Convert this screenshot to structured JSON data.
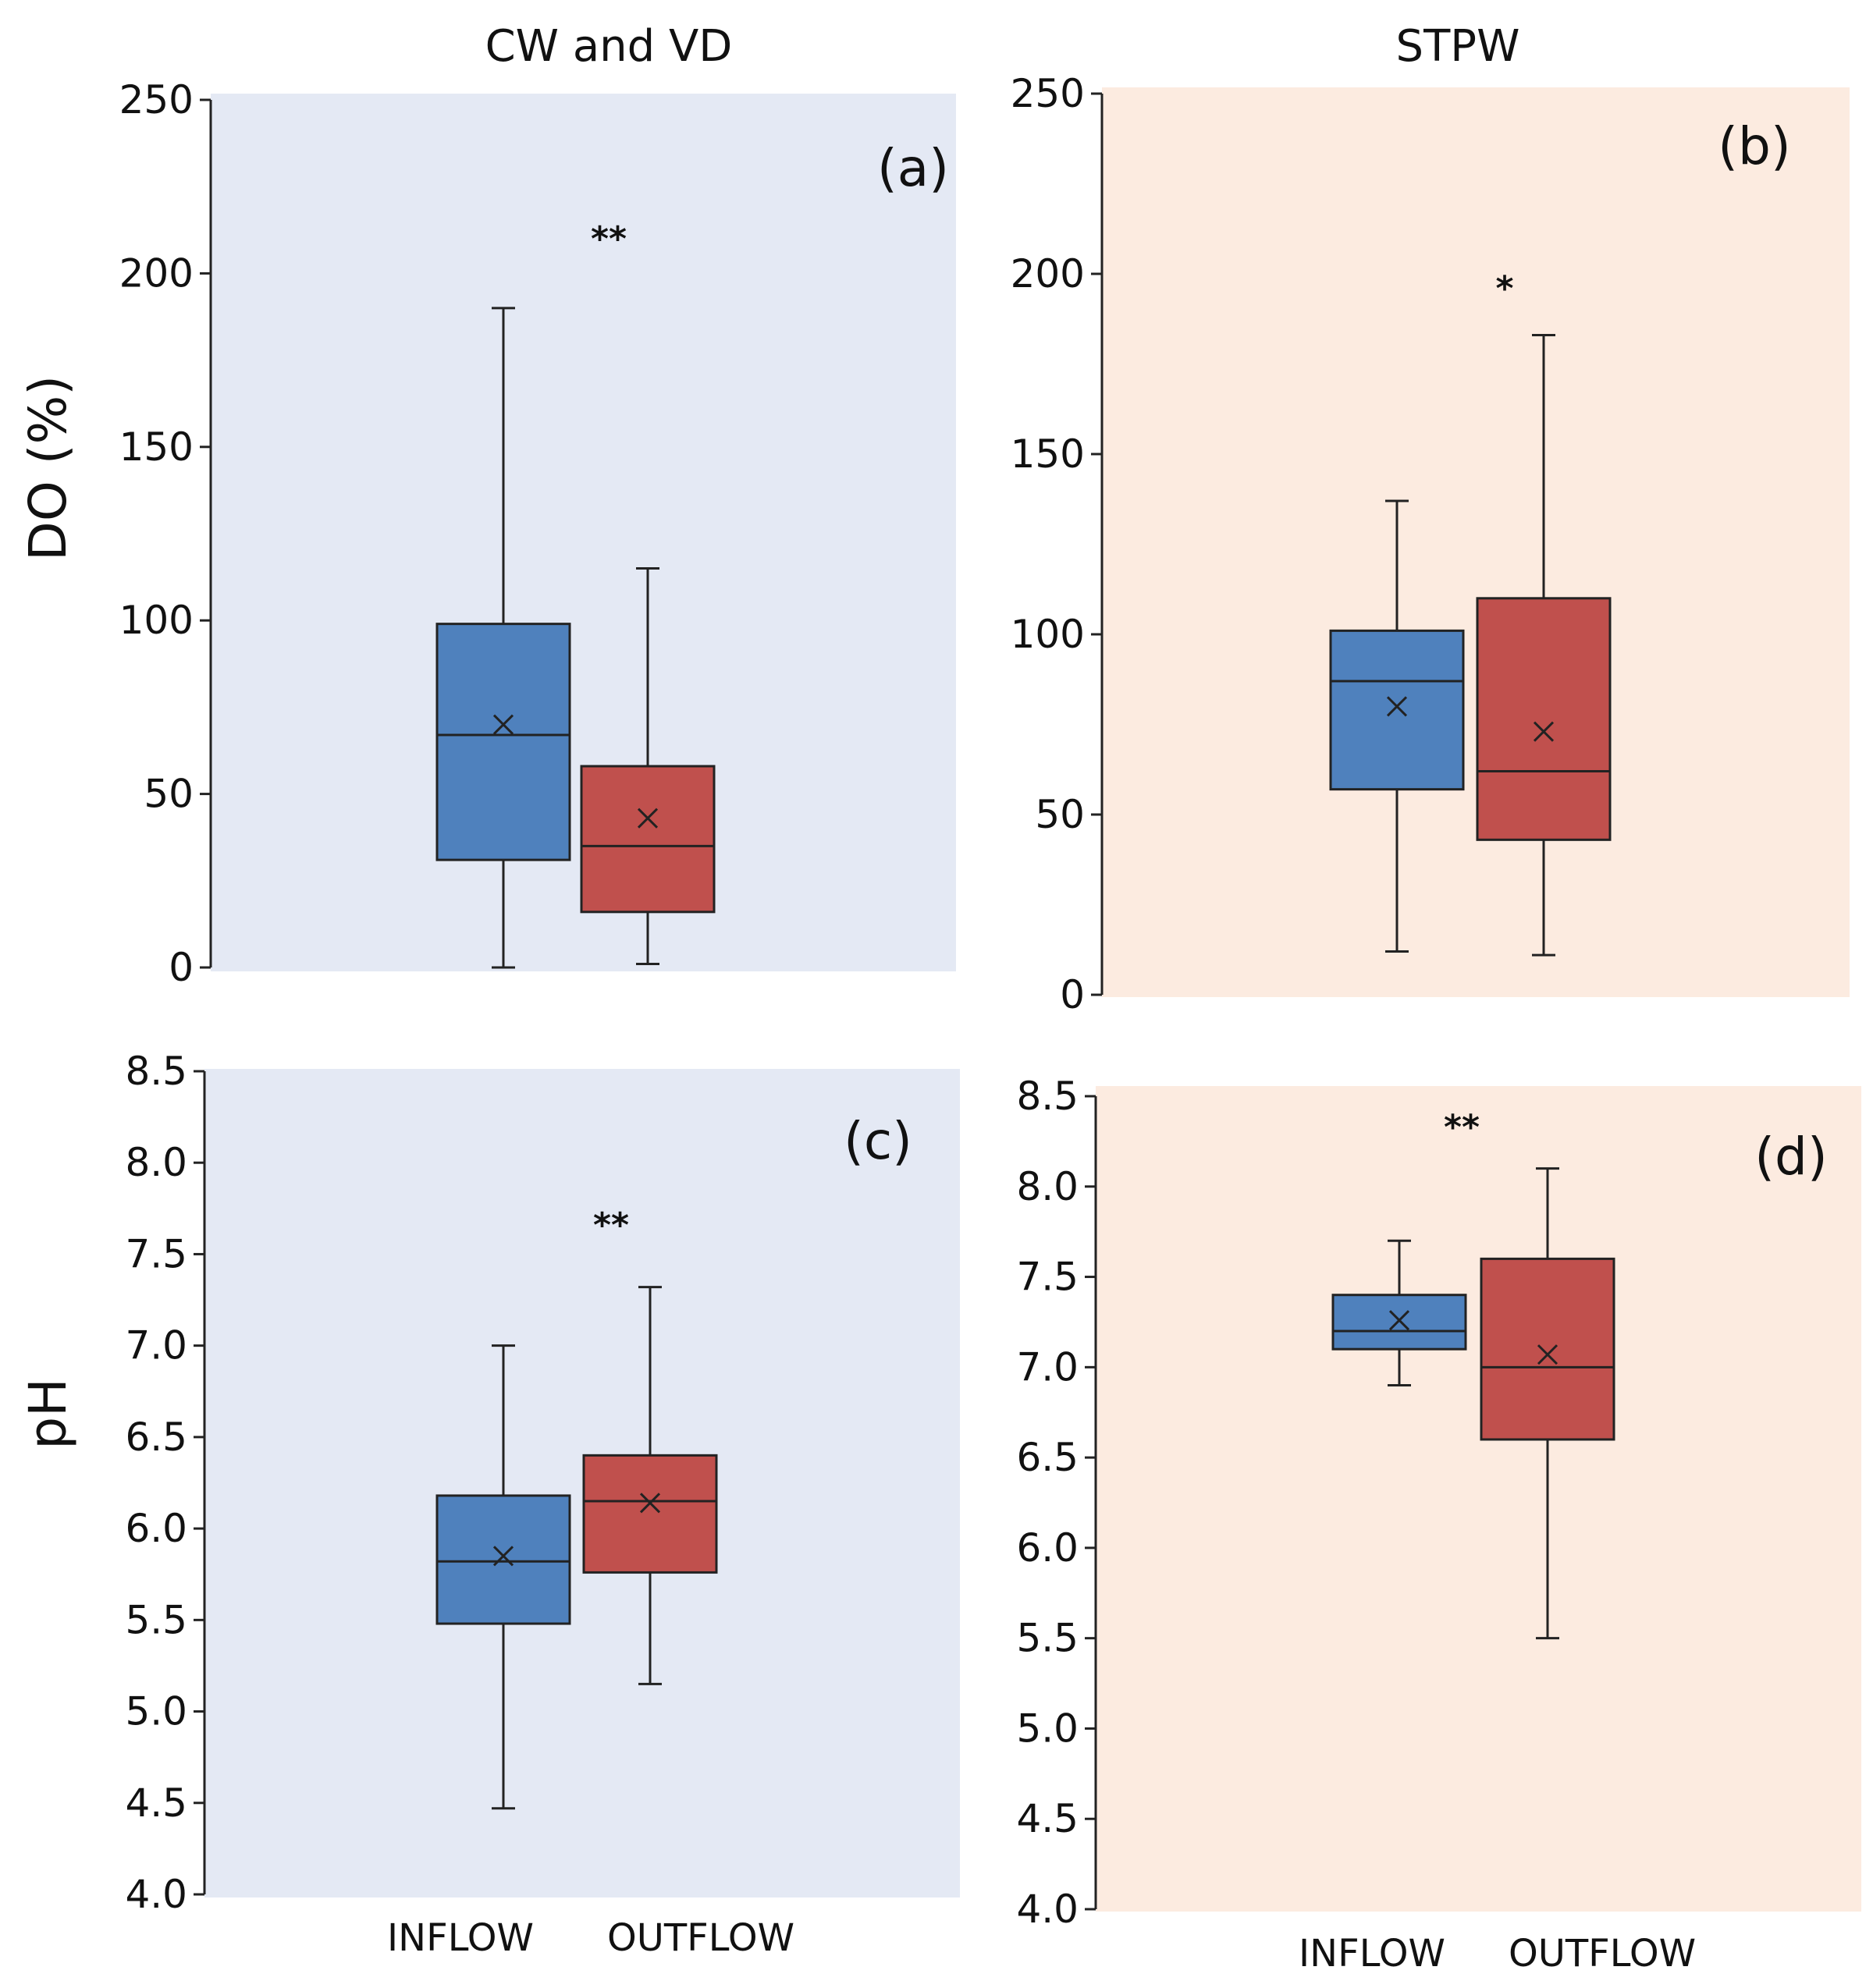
{
  "figure": {
    "column_titles": [
      "CW and VD",
      "STPW"
    ],
    "row_ylabels": [
      "DO (%)",
      "pH"
    ]
  },
  "colors": {
    "inflow": "#4f81bd",
    "outflow": "#c0504d",
    "cw_bg": "#e4e9f4",
    "stpw_bg": "#fcebe0",
    "line": "#222222"
  },
  "chart_data": [
    {
      "type": "box",
      "panel": "(a)",
      "group": "CW and VD",
      "ylabel": "DO (%)",
      "ylim": [
        0,
        250
      ],
      "ticks": [
        0,
        50,
        100,
        150,
        200,
        250
      ],
      "tick_labels": [
        "0",
        "50",
        "100",
        "150",
        "200",
        "250"
      ],
      "categories": [
        "INFLOW",
        "OUTFLOW"
      ],
      "significance": "**",
      "significance_y": 210,
      "series": [
        {
          "name": "INFLOW",
          "min": 0,
          "q1": 31,
          "median": 67,
          "q3": 99,
          "max": 190,
          "mean": 70
        },
        {
          "name": "OUTFLOW",
          "min": 1,
          "q1": 16,
          "median": 35,
          "q3": 58,
          "max": 115,
          "mean": 43
        }
      ]
    },
    {
      "type": "box",
      "panel": "(b)",
      "group": "STPW",
      "ylabel": "",
      "ylim": [
        0,
        250
      ],
      "ticks": [
        0,
        50,
        100,
        150,
        200,
        250
      ],
      "tick_labels": [
        "0",
        "50",
        "100",
        "150",
        "200",
        "250"
      ],
      "categories": [
        "INFLOW",
        "OUTFLOW"
      ],
      "significance": "*",
      "significance_y": 196,
      "series": [
        {
          "name": "INFLOW",
          "min": 12,
          "q1": 57,
          "median": 87,
          "q3": 101,
          "max": 137,
          "mean": 80
        },
        {
          "name": "OUTFLOW",
          "min": 11,
          "q1": 43,
          "median": 62,
          "q3": 110,
          "max": 183,
          "mean": 73
        }
      ]
    },
    {
      "type": "box",
      "panel": "(c)",
      "group": "CW and VD",
      "ylabel": "pH",
      "ylim": [
        4.0,
        8.5
      ],
      "ticks": [
        4.0,
        4.5,
        5.0,
        5.5,
        6.0,
        6.5,
        7.0,
        7.5,
        8.0,
        8.5
      ],
      "tick_labels": [
        "4.0",
        "4.5",
        "5.0",
        "5.5",
        "6.0",
        "6.5",
        "7.0",
        "7.5",
        "8.0",
        "8.5"
      ],
      "categories": [
        "INFLOW",
        "OUTFLOW"
      ],
      "xlabels": [
        "INFLOW",
        "OUTFLOW"
      ],
      "significance": "**",
      "significance_y": 7.66,
      "series": [
        {
          "name": "INFLOW",
          "min": 4.47,
          "q1": 5.48,
          "median": 5.82,
          "q3": 6.18,
          "max": 7.0,
          "mean": 5.85
        },
        {
          "name": "OUTFLOW",
          "min": 5.15,
          "q1": 5.76,
          "median": 6.15,
          "q3": 6.4,
          "max": 7.32,
          "mean": 6.14
        }
      ]
    },
    {
      "type": "box",
      "panel": "(d)",
      "group": "STPW",
      "ylabel": "",
      "ylim": [
        4.0,
        8.5
      ],
      "ticks": [
        4.0,
        4.5,
        5.0,
        5.5,
        6.0,
        6.5,
        7.0,
        7.5,
        8.0,
        8.5
      ],
      "tick_labels": [
        "4.0",
        "4.5",
        "5.0",
        "5.5",
        "6.0",
        "6.5",
        "7.0",
        "7.5",
        "8.0",
        "8.5"
      ],
      "categories": [
        "INFLOW",
        "OUTFLOW"
      ],
      "xlabels": [
        "INFLOW",
        "OUTFLOW"
      ],
      "significance": "**",
      "significance_y": 8.33,
      "series": [
        {
          "name": "INFLOW",
          "min": 6.9,
          "q1": 7.1,
          "median": 7.2,
          "q3": 7.4,
          "max": 7.7,
          "mean": 7.26
        },
        {
          "name": "OUTFLOW",
          "min": 5.5,
          "q1": 6.6,
          "median": 7.0,
          "q3": 7.6,
          "max": 8.1,
          "mean": 7.07
        }
      ]
    }
  ]
}
